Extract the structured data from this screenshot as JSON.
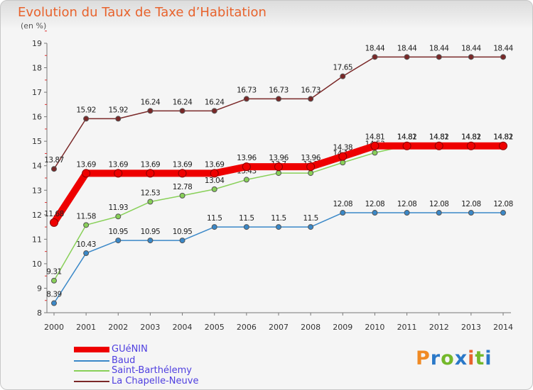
{
  "header": {
    "title": "Evolution du Taux de Taxe d’Habitation",
    "unit": "(en %)"
  },
  "brand": {
    "logo_text": "Proxiti",
    "logo_colors": [
      "#f08a24",
      "#2a78c8",
      "#74b82a",
      "#2a78c8",
      "#e8632d",
      "#74b82a",
      "#2a78c8"
    ]
  },
  "chart_data": {
    "type": "line",
    "title": "Evolution du Taux de Taxe d’Habitation",
    "ylabel": "(en %)",
    "xlabel": "",
    "x": [
      "2000",
      "2001",
      "2002",
      "2003",
      "2004",
      "2005",
      "2006",
      "2007",
      "2008",
      "2009",
      "2010",
      "2011",
      "2012",
      "2013",
      "2014"
    ],
    "ylim": [
      8,
      19
    ],
    "yticks": [
      8,
      9,
      10,
      11,
      12,
      13,
      14,
      15,
      16,
      17,
      18,
      19
    ],
    "grid": false,
    "legend_position": "bottom-left",
    "series": [
      {
        "name": "GUéNIN",
        "color": "#ee0000",
        "values": [
          11.68,
          13.69,
          13.69,
          13.69,
          13.69,
          13.69,
          13.96,
          13.96,
          13.96,
          14.38,
          14.81,
          14.81,
          14.81,
          14.81,
          14.81
        ],
        "labels": [
          "11.68",
          "13.69",
          "13.69",
          "13.69",
          "13.69",
          "13.69",
          "13.96",
          "13.96",
          "13.96",
          "14.38",
          "14.81",
          "14.81",
          "14.81",
          "14.81",
          "14.81"
        ]
      },
      {
        "name": "Baud",
        "color": "#3a88c8",
        "values": [
          8.39,
          10.43,
          10.95,
          10.95,
          10.95,
          11.5,
          11.5,
          11.5,
          11.5,
          12.08,
          12.08,
          12.08,
          12.08,
          12.08,
          12.08
        ],
        "labels": [
          "8.39",
          "10.43",
          "10.95",
          "10.95",
          "10.95",
          "11.5",
          "11.5",
          "11.5",
          "11.5",
          "12.08",
          "12.08",
          "12.08",
          "12.08",
          "12.08",
          "12.08"
        ]
      },
      {
        "name": "Saint-Barthélemy",
        "color": "#88d058",
        "values": [
          9.31,
          11.58,
          11.93,
          12.53,
          12.78,
          13.04,
          13.43,
          13.7,
          13.7,
          14.13,
          14.53,
          14.82,
          14.82,
          14.82,
          14.82
        ],
        "labels": [
          "9.31",
          "11.58",
          "11.93",
          "12.53",
          "12.78",
          "13.04",
          "13.43",
          "13.7",
          "13.7",
          "14.13",
          "14.53",
          "14.82",
          "14.82",
          "14.82",
          "14.82"
        ]
      },
      {
        "name": "La Chapelle-Neuve",
        "color": "#7a2828",
        "values": [
          13.87,
          15.92,
          15.92,
          16.24,
          16.24,
          16.24,
          16.73,
          16.73,
          16.73,
          17.65,
          18.44,
          18.44,
          18.44,
          18.44,
          18.44
        ],
        "labels": [
          "13.87",
          "15.92",
          "15.92",
          "16.24",
          "16.24",
          "16.24",
          "16.73",
          "16.73",
          "16.73",
          "17.65",
          "18.44",
          "18.44",
          "18.44",
          "18.44",
          "18.44"
        ]
      }
    ]
  }
}
